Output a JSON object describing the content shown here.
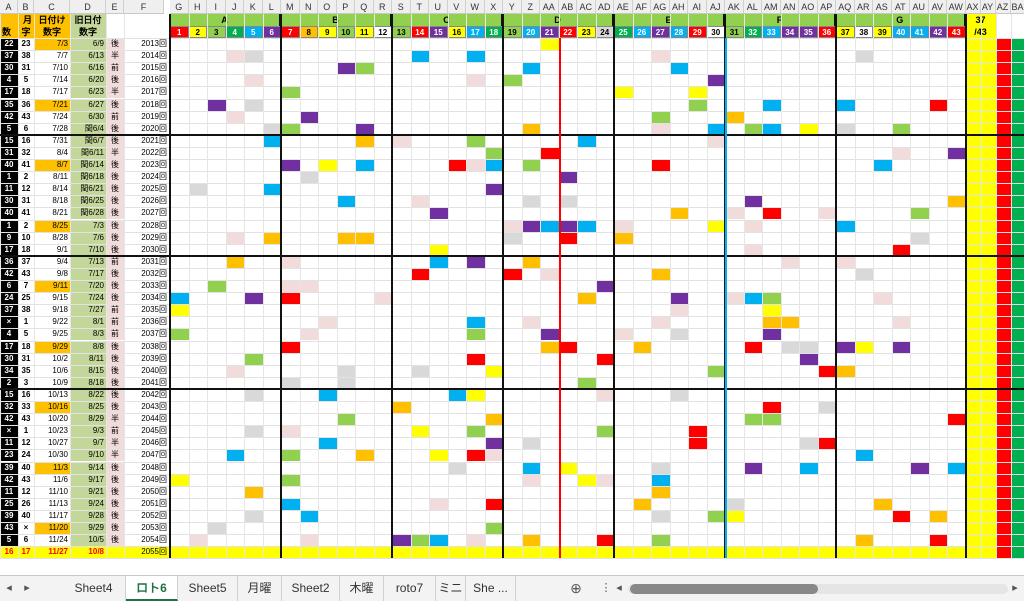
{
  "columns": [
    "A",
    "B",
    "C",
    "D",
    "E",
    "F",
    "G",
    "H",
    "I",
    "J",
    "K",
    "L",
    "M",
    "N",
    "O",
    "P",
    "Q",
    "R",
    "S",
    "T",
    "U",
    "V",
    "W",
    "X",
    "Y",
    "Z",
    "AA",
    "AB",
    "AC",
    "AD",
    "AE",
    "AF",
    "AG",
    "AH",
    "AI",
    "AJ",
    "AK",
    "AL",
    "AM",
    "AN",
    "AO",
    "AP",
    "AQ",
    "AR",
    "AS",
    "AT",
    "AU",
    "AV",
    "AW",
    "AX",
    "AY",
    "AZ",
    "BA"
  ],
  "groups": [
    "A",
    "B",
    "C",
    "D",
    "E",
    "F",
    "G"
  ],
  "header": {
    "month": "月",
    "day": "日",
    "count": "数",
    "char": "字",
    "date_label": "日付け",
    "date_num": "数字",
    "old_date_label": "旧日付",
    "old_num": "数字",
    "right_top": "37",
    "right_sub": "/43"
  },
  "numbers": [
    "1",
    "2",
    "3",
    "4",
    "5",
    "6",
    "7",
    "8",
    "9",
    "10",
    "11",
    "12",
    "13",
    "14",
    "15",
    "16",
    "17",
    "18",
    "19",
    "20",
    "21",
    "22",
    "23",
    "24",
    "25",
    "26",
    "27",
    "28",
    "29",
    "30",
    "31",
    "32",
    "33",
    "34",
    "35",
    "36",
    "37",
    "38",
    "39",
    "40",
    "41",
    "42",
    "43"
  ],
  "rows": [
    {
      "a": "22",
      "b": "23",
      "c": "7/3",
      "d": "6/9",
      "e": "後",
      "f": "2013回"
    },
    {
      "a": "37",
      "b": "38",
      "c": "7/7",
      "d": "6/13",
      "e": "半",
      "f": "2014回"
    },
    {
      "a": "30",
      "b": "31",
      "c": "7/10",
      "d": "6/16",
      "e": "前",
      "f": "2015回"
    },
    {
      "a": "4",
      "b": "5",
      "c": "7/14",
      "d": "6/20",
      "e": "後",
      "f": "2016回"
    },
    {
      "a": "17",
      "b": "18",
      "c": "7/17",
      "d": "6/23",
      "e": "半",
      "f": "2017回"
    },
    {
      "a": "35",
      "b": "36",
      "c": "7/21",
      "d": "6/27",
      "e": "後",
      "f": "2018回"
    },
    {
      "a": "42",
      "b": "43",
      "c": "7/24",
      "d": "6/30",
      "e": "前",
      "f": "2019回"
    },
    {
      "a": "5",
      "b": "6",
      "c": "7/28",
      "d": "閏6/4",
      "e": "後",
      "f": "2020回"
    },
    {
      "a": "15",
      "b": "16",
      "c": "7/31",
      "d": "閏6/7",
      "e": "後",
      "f": "2021回"
    },
    {
      "a": "31",
      "b": "32",
      "c": "8/4",
      "d": "閏6/11",
      "e": "半",
      "f": "2022回"
    },
    {
      "a": "40",
      "b": "41",
      "c": "8/7",
      "d": "閏6/14",
      "e": "後",
      "f": "2023回"
    },
    {
      "a": "1",
      "b": "2",
      "c": "8/11",
      "d": "閏6/18",
      "e": "後",
      "f": "2024回"
    },
    {
      "a": "11",
      "b": "12",
      "c": "8/14",
      "d": "閏6/21",
      "e": "後",
      "f": "2025回"
    },
    {
      "a": "30",
      "b": "31",
      "c": "8/18",
      "d": "閏6/25",
      "e": "後",
      "f": "2026回"
    },
    {
      "a": "40",
      "b": "41",
      "c": "8/21",
      "d": "閏6/28",
      "e": "後",
      "f": "2027回"
    },
    {
      "a": "1",
      "b": "2",
      "c": "8/25",
      "d": "7/3",
      "e": "後",
      "f": "2028回"
    },
    {
      "a": "9",
      "b": "10",
      "c": "8/28",
      "d": "7/6",
      "e": "後",
      "f": "2029回"
    },
    {
      "a": "17",
      "b": "18",
      "c": "9/1",
      "d": "7/10",
      "e": "後",
      "f": "2030回"
    },
    {
      "a": "36",
      "b": "37",
      "c": "9/4",
      "d": "7/13",
      "e": "前",
      "f": "2031回"
    },
    {
      "a": "42",
      "b": "43",
      "c": "9/8",
      "d": "7/17",
      "e": "後",
      "f": "2032回"
    },
    {
      "a": "6",
      "b": "7",
      "c": "9/11",
      "d": "7/20",
      "e": "後",
      "f": "2033回"
    },
    {
      "a": "24",
      "b": "25",
      "c": "9/15",
      "d": "7/24",
      "e": "後",
      "f": "2034回"
    },
    {
      "a": "37",
      "b": "38",
      "c": "9/18",
      "d": "7/27",
      "e": "前",
      "f": "2035回"
    },
    {
      "a": "×",
      "b": "1",
      "c": "9/22",
      "d": "8/1",
      "e": "前",
      "f": "2036回"
    },
    {
      "a": "4",
      "b": "5",
      "c": "9/25",
      "d": "8/3",
      "e": "前",
      "f": "2037回"
    },
    {
      "a": "17",
      "b": "18",
      "c": "9/29",
      "d": "8/8",
      "e": "後",
      "f": "2038回"
    },
    {
      "a": "30",
      "b": "31",
      "c": "10/2",
      "d": "8/11",
      "e": "後",
      "f": "2039回"
    },
    {
      "a": "34",
      "b": "35",
      "c": "10/6",
      "d": "8/15",
      "e": "後",
      "f": "2040回"
    },
    {
      "a": "2",
      "b": "3",
      "c": "10/9",
      "d": "8/18",
      "e": "後",
      "f": "2041回"
    },
    {
      "a": "15",
      "b": "16",
      "c": "10/13",
      "d": "8/22",
      "e": "後",
      "f": "2042回"
    },
    {
      "a": "32",
      "b": "33",
      "c": "10/16",
      "d": "8/25",
      "e": "後",
      "f": "2043回"
    },
    {
      "a": "42",
      "b": "43",
      "c": "10/20",
      "d": "8/29",
      "e": "半",
      "f": "2044回"
    },
    {
      "a": "×",
      "b": "1",
      "c": "10/23",
      "d": "9/3",
      "e": "前",
      "f": "2045回"
    },
    {
      "a": "11",
      "b": "12",
      "c": "10/27",
      "d": "9/7",
      "e": "半",
      "f": "2046回"
    },
    {
      "a": "23",
      "b": "24",
      "c": "10/30",
      "d": "9/10",
      "e": "半",
      "f": "2047回"
    },
    {
      "a": "39",
      "b": "40",
      "c": "11/3",
      "d": "9/14",
      "e": "後",
      "f": "2048回"
    },
    {
      "a": "42",
      "b": "43",
      "c": "11/6",
      "d": "9/17",
      "e": "後",
      "f": "2049回"
    },
    {
      "a": "11",
      "b": "12",
      "c": "11/10",
      "d": "9/21",
      "e": "後",
      "f": "2050回"
    },
    {
      "a": "25",
      "b": "26",
      "c": "11/13",
      "d": "9/24",
      "e": "後",
      "f": "2051回"
    },
    {
      "a": "39",
      "b": "40",
      "c": "11/17",
      "d": "9/28",
      "e": "後",
      "f": "2052回"
    },
    {
      "a": "43",
      "b": "×",
      "c": "11/20",
      "d": "9/29",
      "e": "後",
      "f": "2053回"
    },
    {
      "a": "5",
      "b": "6",
      "c": "11/24",
      "d": "10/5",
      "e": "後",
      "f": "2054回"
    },
    {
      "a": "16",
      "b": "17",
      "c": "11/27",
      "d": "10/8",
      "e": "",
      "f": "2055回"
    }
  ],
  "tabs": [
    "Sheet4",
    "ロト6",
    "Sheet5",
    "月曜",
    "Sheet2",
    "木曜",
    "roto7",
    "ミニ",
    "She ..."
  ],
  "active_tab": "ロト6",
  "colors": {
    "yellow": "#ffff00",
    "orange": "#ffc000",
    "green": "#92d050",
    "red": "#ff0000",
    "blue": "#00b0f0",
    "purple": "#7030a0",
    "pink": "#f2dcdb",
    "gray": "#d9d9d9"
  }
}
